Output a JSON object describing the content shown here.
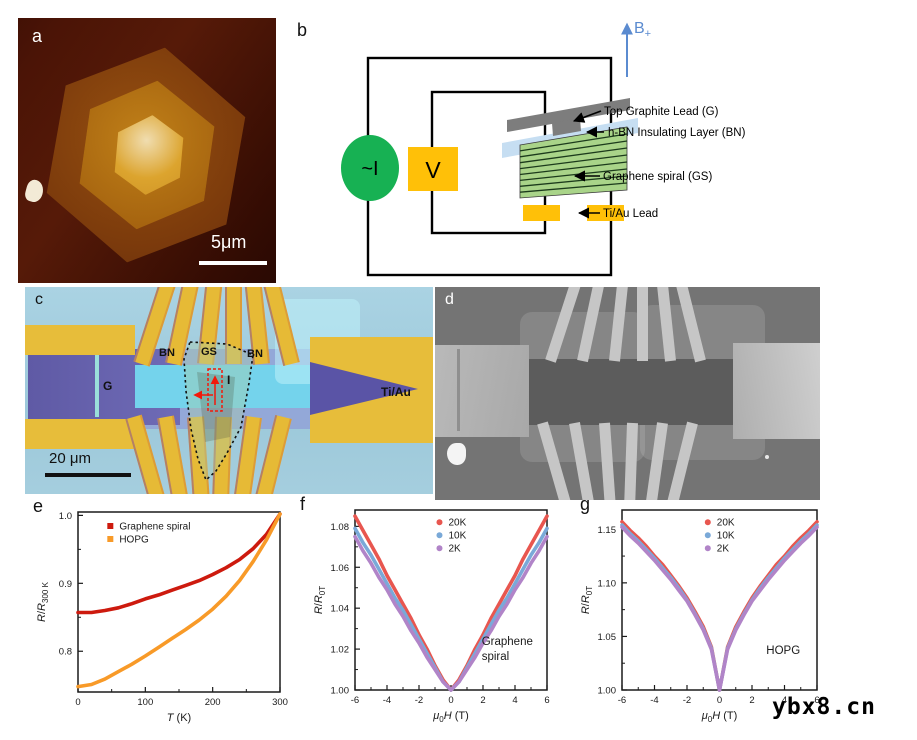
{
  "watermark": "ybx8.cn",
  "panel_a": {
    "label": "a",
    "scale_bar_label": "5μm"
  },
  "panel_b": {
    "label": "b",
    "field_label": "B",
    "field_sub": "+",
    "source_label": "~I",
    "voltmeter_label": "V",
    "callouts": [
      "Top Graphite Lead (G)",
      "h-BN Insulating Layer (BN)",
      "Graphene spiral (GS)",
      "Ti/Au Lead"
    ]
  },
  "panel_c": {
    "label": "c",
    "scale_bar_label": "20 μm",
    "bn_left": "BN",
    "gs": "GS",
    "bn_right": "BN",
    "graphite": "G",
    "current": "I",
    "electrode": "Ti/Au"
  },
  "panel_d": {
    "label": "d"
  },
  "chart_data": [
    {
      "panel": "e",
      "type": "line",
      "x": [
        0,
        20,
        40,
        60,
        80,
        100,
        120,
        140,
        160,
        180,
        200,
        220,
        240,
        260,
        280,
        300
      ],
      "series": [
        {
          "name": "Graphene spiral",
          "color": "#cd1a0e",
          "values": [
            0.857,
            0.857,
            0.86,
            0.864,
            0.87,
            0.877,
            0.883,
            0.89,
            0.897,
            0.904,
            0.913,
            0.923,
            0.935,
            0.951,
            0.972,
            1.002
          ]
        },
        {
          "name": "HOPG",
          "color": "#f89a28",
          "values": [
            0.748,
            0.751,
            0.759,
            0.77,
            0.781,
            0.793,
            0.806,
            0.819,
            0.832,
            0.846,
            0.862,
            0.881,
            0.904,
            0.932,
            0.964,
            1.002
          ]
        }
      ],
      "xlabel_parts": [
        {
          "text": "T",
          "italic": true
        },
        {
          "text": " (K)"
        }
      ],
      "ylabel_parts": [
        {
          "text": "R",
          "italic": true
        },
        {
          "text": "/"
        },
        {
          "text": "R",
          "italic": true
        },
        {
          "text": "300 K",
          "sub": true
        }
      ],
      "xlim": [
        0,
        300
      ],
      "ylim": [
        0.74,
        1.005
      ],
      "xticks": [
        0,
        100,
        200,
        300
      ],
      "xtick_labels": [
        "0",
        "100",
        "200",
        "300"
      ],
      "yticks": [
        0.8,
        0.9,
        1.0
      ],
      "ytick_labels": [
        "0.8",
        "0.9",
        "1.0"
      ],
      "grid": false,
      "legend": {
        "fx": 0.16,
        "fy": 0.05
      },
      "marker": "square",
      "annotation": null
    },
    {
      "panel": "f",
      "type": "line",
      "x": [
        -6,
        -5.5,
        -5,
        -4.5,
        -4,
        -3.5,
        -3,
        -2.5,
        -2,
        -1.5,
        -1,
        -0.5,
        0,
        0.5,
        1,
        1.5,
        2,
        2.5,
        3,
        3.5,
        4,
        4.5,
        5,
        5.5,
        6
      ],
      "series": [
        {
          "name": "20K",
          "color": "#e8564f",
          "values": [
            1.085,
            1.078,
            1.071,
            1.064,
            1.056,
            1.049,
            1.042,
            1.035,
            1.027,
            1.02,
            1.012,
            1.005,
            1.0,
            1.005,
            1.012,
            1.02,
            1.027,
            1.035,
            1.042,
            1.049,
            1.056,
            1.064,
            1.071,
            1.078,
            1.085
          ]
        },
        {
          "name": "10K",
          "color": "#7aa9d8",
          "values": [
            1.079,
            1.072,
            1.066,
            1.059,
            1.052,
            1.045,
            1.039,
            1.032,
            1.025,
            1.018,
            1.011,
            1.004,
            1.0,
            1.004,
            1.011,
            1.018,
            1.025,
            1.032,
            1.039,
            1.045,
            1.052,
            1.059,
            1.066,
            1.072,
            1.079
          ]
        },
        {
          "name": "2K",
          "color": "#b184c8",
          "values": [
            1.075,
            1.068,
            1.062,
            1.055,
            1.049,
            1.042,
            1.036,
            1.029,
            1.023,
            1.016,
            1.01,
            1.004,
            1.0,
            1.004,
            1.01,
            1.016,
            1.023,
            1.029,
            1.036,
            1.042,
            1.049,
            1.055,
            1.062,
            1.068,
            1.075
          ]
        }
      ],
      "xlabel_parts": [
        {
          "text": "μ",
          "italic": true
        },
        {
          "text": "0",
          "sub": true
        },
        {
          "text": "H",
          "italic": true
        },
        {
          "text": " (T)"
        }
      ],
      "ylabel_parts": [
        {
          "text": "R",
          "italic": true
        },
        {
          "text": "/"
        },
        {
          "text": "R",
          "italic": true
        },
        {
          "text": "0T",
          "sub": true
        }
      ],
      "xlim": [
        -6,
        6
      ],
      "ylim": [
        1.0,
        1.088
      ],
      "xticks": [
        -6,
        -4,
        -2,
        0,
        2,
        4,
        6
      ],
      "xtick_labels": [
        "-6",
        "-4",
        "-2",
        "0",
        "2",
        "4",
        "6"
      ],
      "yticks": [
        1.0,
        1.02,
        1.04,
        1.06,
        1.08
      ],
      "ytick_labels": [
        "1.00",
        "1.02",
        "1.04",
        "1.06",
        "1.08"
      ],
      "grid": false,
      "legend": {
        "fx": 0.44,
        "fy": 0.04
      },
      "marker": "circle",
      "annotation": {
        "lines": [
          "Graphene",
          "spiral"
        ],
        "fx": 0.66,
        "fy": 0.75
      }
    },
    {
      "panel": "g",
      "type": "line",
      "x": [
        -6,
        -5.5,
        -5,
        -4.5,
        -4,
        -3.5,
        -3,
        -2.5,
        -2,
        -1.5,
        -1,
        -0.5,
        0,
        0.5,
        1,
        1.5,
        2,
        2.5,
        3,
        3.5,
        4,
        4.5,
        5,
        5.5,
        6
      ],
      "series": [
        {
          "name": "20K",
          "color": "#e8564f",
          "values": [
            1.157,
            1.149,
            1.142,
            1.134,
            1.125,
            1.117,
            1.107,
            1.097,
            1.086,
            1.073,
            1.059,
            1.04,
            1.0,
            1.04,
            1.059,
            1.073,
            1.086,
            1.097,
            1.107,
            1.117,
            1.125,
            1.134,
            1.142,
            1.149,
            1.157
          ]
        },
        {
          "name": "10K",
          "color": "#7aa9d8",
          "values": [
            1.154,
            1.146,
            1.139,
            1.131,
            1.123,
            1.114,
            1.105,
            1.095,
            1.084,
            1.071,
            1.057,
            1.039,
            1.0,
            1.039,
            1.057,
            1.071,
            1.084,
            1.095,
            1.105,
            1.114,
            1.123,
            1.131,
            1.139,
            1.146,
            1.154
          ]
        },
        {
          "name": "2K",
          "color": "#b184c8",
          "values": [
            1.152,
            1.144,
            1.137,
            1.129,
            1.121,
            1.112,
            1.103,
            1.093,
            1.083,
            1.07,
            1.056,
            1.038,
            1.0,
            1.038,
            1.056,
            1.07,
            1.083,
            1.093,
            1.103,
            1.112,
            1.121,
            1.129,
            1.137,
            1.144,
            1.152
          ]
        }
      ],
      "xlabel_parts": [
        {
          "text": "μ",
          "italic": true
        },
        {
          "text": "0",
          "sub": true
        },
        {
          "text": "H",
          "italic": true
        },
        {
          "text": " (T)"
        }
      ],
      "ylabel_parts": [
        {
          "text": "R",
          "italic": true
        },
        {
          "text": "/"
        },
        {
          "text": "R",
          "italic": true
        },
        {
          "text": "0T",
          "sub": true
        }
      ],
      "xlim": [
        -6,
        6
      ],
      "ylim": [
        1.0,
        1.168
      ],
      "xticks": [
        -6,
        -4,
        -2,
        0,
        2,
        4,
        6
      ],
      "xtick_labels": [
        "-6",
        "-4",
        "-2",
        "0",
        "2",
        "4",
        "6"
      ],
      "yticks": [
        1.0,
        1.05,
        1.1,
        1.15
      ],
      "ytick_labels": [
        "1.00",
        "1.05",
        "1.10",
        "1.15"
      ],
      "grid": false,
      "legend": {
        "fx": 0.44,
        "fy": 0.04
      },
      "marker": "circle",
      "annotation": {
        "lines": [
          "HOPG"
        ],
        "fx": 0.74,
        "fy": 0.8
      }
    }
  ]
}
